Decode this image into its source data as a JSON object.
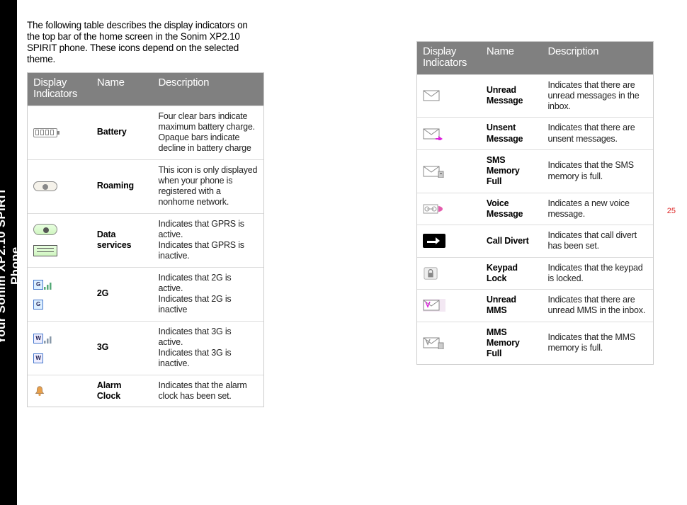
{
  "sideTab": "Your Sonim XP2.10 SPIRIT Phone",
  "pageNumber": "25",
  "intro": "The following table describes the display indicators on the top bar of the home screen in the Sonim XP2.10 SPIRIT phone. These icons depend on the selected theme.",
  "headers": {
    "col1line1": "Display",
    "col1line2": "Indicators",
    "col2": "Name",
    "col3": "Description"
  },
  "leftRows": [
    {
      "icon": "battery",
      "name": "Battery",
      "desc": "Four clear bars indicate maximum battery charge. Opaque bars indicate decline in battery charge"
    },
    {
      "icon": "roaming",
      "name": "Roaming",
      "desc": "This icon is only displayed when your phone is registered with a nonhome network."
    },
    {
      "icon": "data",
      "name": "Data services",
      "desc": "Indicates that GPRS is active.\nIndicates that GPRS is inactive."
    },
    {
      "icon": "2g",
      "name": "2G",
      "desc": "Indicates that 2G is active.\nIndicates that 2G is inactive"
    },
    {
      "icon": "3g",
      "name": "3G",
      "desc": "Indicates that 3G is active.\nIndicates that 3G is inactive."
    },
    {
      "icon": "alarm",
      "name": "Alarm Clock",
      "desc": "Indicates that the alarm clock has been set."
    }
  ],
  "rightRows": [
    {
      "icon": "unread-msg",
      "name": "Unread Message",
      "desc": "Indicates that there are unread messages in the inbox."
    },
    {
      "icon": "unsent-msg",
      "name": "Unsent Message",
      "desc": "Indicates that there are unsent messages."
    },
    {
      "icon": "sms-full",
      "name": "SMS Memory Full",
      "desc": "Indicates that the SMS memory is full."
    },
    {
      "icon": "voice-msg",
      "name": "Voice Message",
      "desc": "Indicates a new voice message."
    },
    {
      "icon": "divert",
      "name": "Call Divert",
      "desc": "Indicates that call divert has been set."
    },
    {
      "icon": "keypad-lock",
      "name": "Keypad Lock",
      "desc": "Indicates that the keypad is locked."
    },
    {
      "icon": "unread-mms",
      "name": "Unread MMS",
      "desc": "Indicates that there are unread MMS in the inbox."
    },
    {
      "icon": "mms-full",
      "name": "MMS Memory Full",
      "desc": "Indicates that the MMS memory is full."
    }
  ],
  "colors": {
    "headerBg": "#808080",
    "headerText": "#ffffff",
    "border": "#dddddd",
    "pageNum": "#dd2222",
    "sideBg": "#000000",
    "sideText": "#ffffff"
  }
}
